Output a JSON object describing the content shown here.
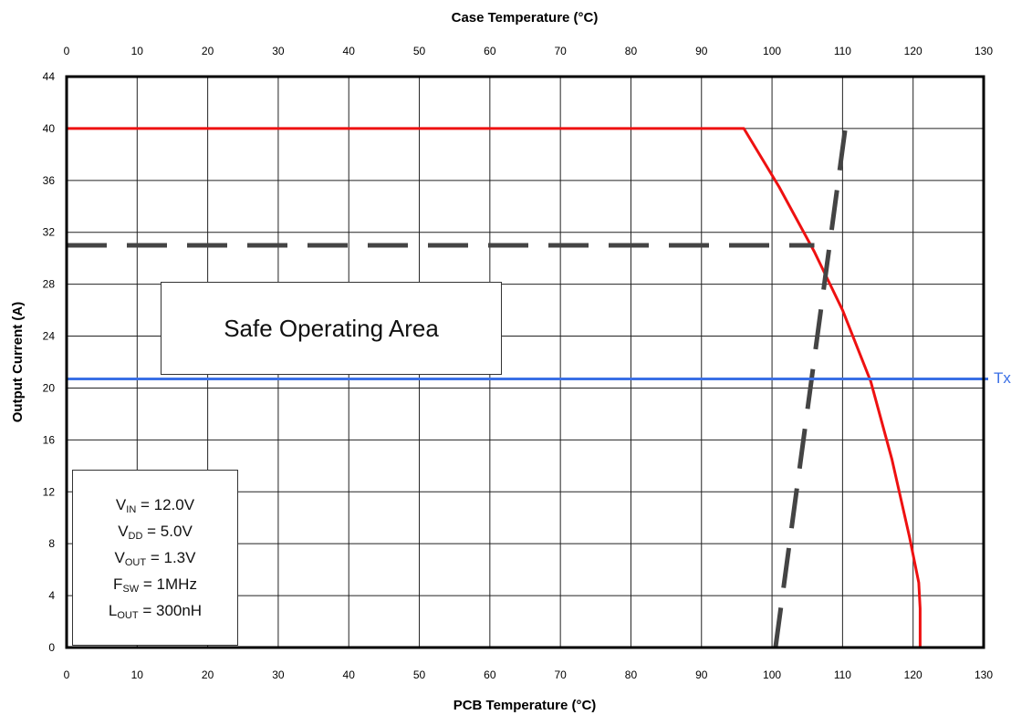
{
  "chart_data": {
    "type": "line",
    "xlabel": "PCB Temperature (°C)",
    "x2label": "Case Temperature (°C)",
    "ylabel": "Output Current  (A)",
    "xlim": [
      0,
      130
    ],
    "ylim": [
      0,
      44
    ],
    "x_ticks": [
      "0",
      "10",
      "20",
      "30",
      "40",
      "50",
      "60",
      "70",
      "80",
      "90",
      "100",
      "110",
      "120",
      "130"
    ],
    "x2_ticks": [
      "0",
      "10",
      "20",
      "30",
      "40",
      "50",
      "60",
      "70",
      "80",
      "90",
      "100",
      "110",
      "120",
      "130"
    ],
    "y_ticks": [
      "0",
      "4",
      "8",
      "12",
      "16",
      "20",
      "24",
      "28",
      "32",
      "36",
      "40",
      "44"
    ],
    "grid": true,
    "series": [
      {
        "style": "solid",
        "color": "#ee1111",
        "x": [
          0,
          96,
          101,
          106,
          110,
          114,
          117,
          119.5,
          120.8,
          121,
          121
        ],
        "y": [
          40,
          40,
          35.5,
          30.5,
          26,
          20.5,
          14.5,
          8.5,
          5,
          3,
          0
        ]
      },
      {
        "style": "dashed",
        "color": "#444444",
        "x": [
          0,
          106
        ],
        "y": [
          31,
          31
        ]
      },
      {
        "style": "dashed",
        "color": "#444444",
        "x": [
          100.5,
          110.5
        ],
        "y": [
          0,
          40.5
        ]
      },
      {
        "name": "Tx",
        "style": "solid",
        "color": "#3a6fe6",
        "x": [
          0,
          130
        ],
        "y": [
          20.7,
          20.7
        ]
      }
    ],
    "annotations": {
      "soa": "Safe Operating Area",
      "conditions": [
        {
          "main": "V",
          "sub": "IN",
          "rest": " = 12.0V"
        },
        {
          "main": "V",
          "sub": "DD",
          "rest": " = 5.0V"
        },
        {
          "main": "V",
          "sub": "OUT",
          "rest": " = 1.3V"
        },
        {
          "main": "F",
          "sub": "SW",
          "rest": " = 1MHz"
        },
        {
          "main": "L",
          "sub": "OUT",
          "rest": " = 300nH"
        }
      ],
      "tx": "Tx"
    }
  }
}
